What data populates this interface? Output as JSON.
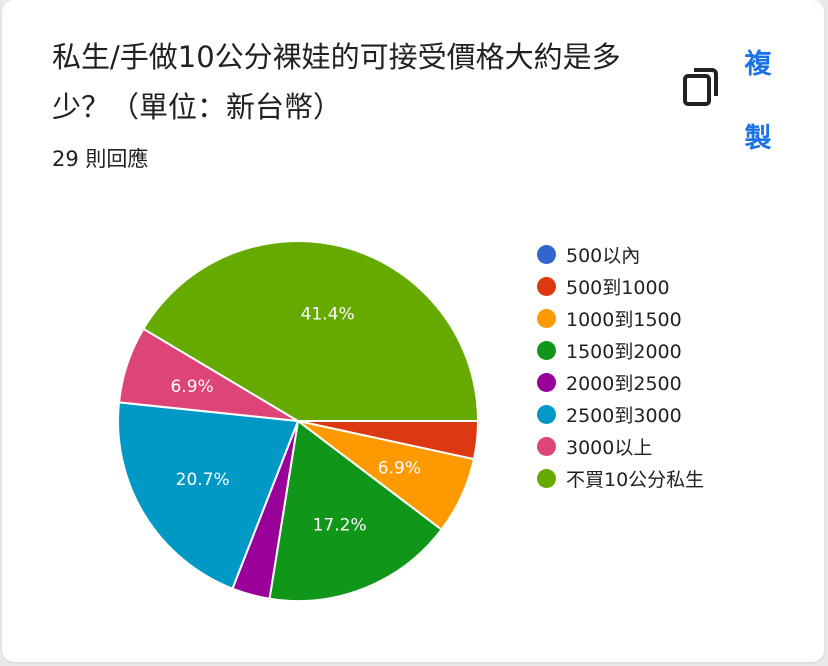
{
  "question": {
    "title": "私生/手做10公分裸娃的可接受價格大約是多少？（單位：新台幣）",
    "responses": "29 則回應"
  },
  "actions": {
    "copy_label": "複製",
    "copy_icon": "copy-icon"
  },
  "chart_data": {
    "type": "pie",
    "title": "",
    "legend_position": "right",
    "slices": [
      {
        "label": "500以內",
        "value": 0,
        "percent_label": "",
        "color": "#3366cc"
      },
      {
        "label": "500到1000",
        "value": 3.4,
        "percent_label": "",
        "color": "#dc3912"
      },
      {
        "label": "1000到1500",
        "value": 6.9,
        "percent_label": "6.9%",
        "color": "#ff9900"
      },
      {
        "label": "1500到2000",
        "value": 17.2,
        "percent_label": "17.2%",
        "color": "#109618"
      },
      {
        "label": "2000到2500",
        "value": 3.4,
        "percent_label": "",
        "color": "#990099"
      },
      {
        "label": "2500到3000",
        "value": 20.7,
        "percent_label": "20.7%",
        "color": "#0099c6"
      },
      {
        "label": "3000以上",
        "value": 6.9,
        "percent_label": "6.9%",
        "color": "#dd4477"
      },
      {
        "label": "不買10公分私生",
        "value": 41.4,
        "percent_label": "41.4%",
        "color": "#66aa00"
      }
    ]
  }
}
